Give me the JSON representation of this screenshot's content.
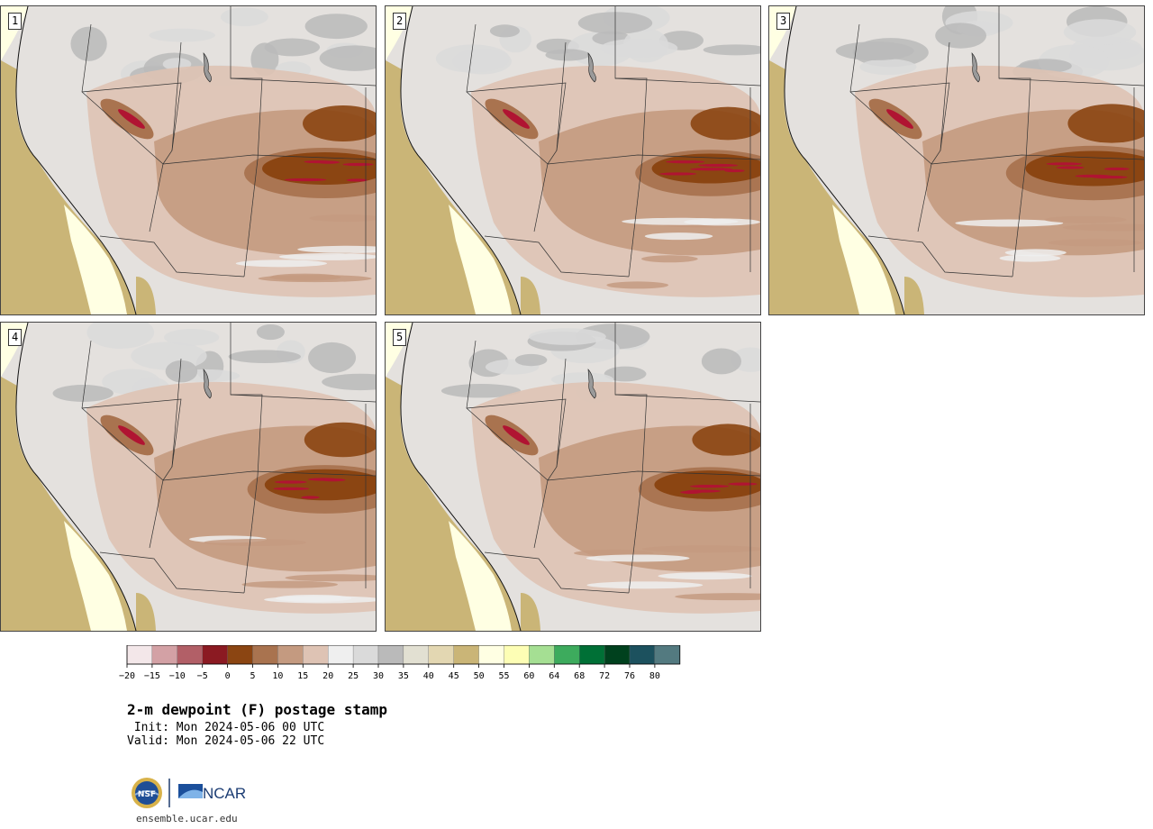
{
  "panels": [
    {
      "label": "1",
      "moist_scale": 1.0
    },
    {
      "label": "2",
      "moist_scale": 0.92
    },
    {
      "label": "3",
      "moist_scale": 1.08
    },
    {
      "label": "4",
      "moist_scale": 0.96
    },
    {
      "label": "5",
      "moist_scale": 0.88
    }
  ],
  "colorbar": {
    "ticks": [
      "−20",
      "−15",
      "−10",
      "−5",
      "0",
      "5",
      "10",
      "15",
      "20",
      "25",
      "30",
      "35",
      "40",
      "45",
      "50",
      "55",
      "60",
      "64",
      "68",
      "72",
      "76",
      "80"
    ],
    "colors": [
      "#f3e7e9",
      "#d3a1a5",
      "#b25f67",
      "#8b1a22",
      "#8b4512",
      "#a9734f",
      "#c49a80",
      "#dec3b4",
      "#efefef",
      "#dadada",
      "#bababa",
      "#e2e0d2",
      "#e3d7b2",
      "#cab577",
      "#ffffe3",
      "#fdfeb5",
      "#a5df93",
      "#3dab5d",
      "#007036",
      "#00411e",
      "#1c515e",
      "#537a80"
    ]
  },
  "title": "2-m dewpoint (F) postage stamp",
  "init_line": " Init: Mon 2024-05-06 00 UTC",
  "valid_line": "Valid: Mon 2024-05-06 22 UTC",
  "logos": {
    "left": "NSF",
    "right": "NCAR"
  },
  "website": "ensemble.ucar.edu",
  "map_colors": {
    "ocean": "#cab577",
    "coast_moist": "#ffffe3",
    "dry_brown": "#8b4512",
    "brown": "#a9734f",
    "tan": "#c49a80",
    "light_tan": "#dec3b4",
    "grey": "#bababa",
    "light_grey": "#dadada",
    "whiteish": "#efefef",
    "red": "#b01432"
  }
}
